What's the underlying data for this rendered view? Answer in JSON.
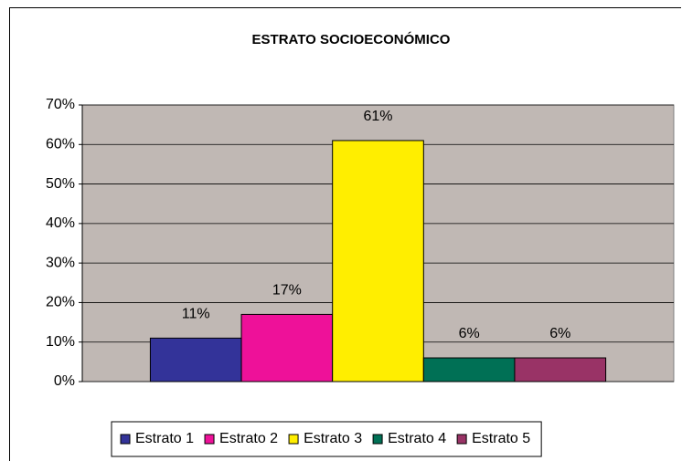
{
  "chart_data": {
    "type": "bar",
    "title": "ESTRATO SOCIOECONÓMICO",
    "series": [
      {
        "name": "Estrato 1",
        "color": "#333399",
        "values": [
          11
        ],
        "value_labels": [
          "11%"
        ]
      },
      {
        "name": "Estrato 2",
        "color": "#ee1199",
        "values": [
          17
        ],
        "value_labels": [
          "17%"
        ]
      },
      {
        "name": "Estrato 3",
        "color": "#ffee00",
        "values": [
          61
        ],
        "value_labels": [
          "61%"
        ]
      },
      {
        "name": "Estrato 4",
        "color": "#007055",
        "values": [
          6
        ],
        "value_labels": [
          "6%"
        ]
      },
      {
        "name": "Estrato 5",
        "color": "#993366",
        "values": [
          6
        ],
        "value_labels": [
          "6%"
        ]
      }
    ],
    "ylim": [
      0,
      70
    ],
    "yticks": [
      {
        "value": 0,
        "label": "0%"
      },
      {
        "value": 10,
        "label": "10%"
      },
      {
        "value": 20,
        "label": "20%"
      },
      {
        "value": 30,
        "label": "30%"
      },
      {
        "value": 40,
        "label": "40%"
      },
      {
        "value": 50,
        "label": "50%"
      },
      {
        "value": 60,
        "label": "60%"
      },
      {
        "value": 70,
        "label": "70%"
      }
    ],
    "grid": true,
    "legend": "bottom",
    "plot_background": "#c0b8b4"
  }
}
